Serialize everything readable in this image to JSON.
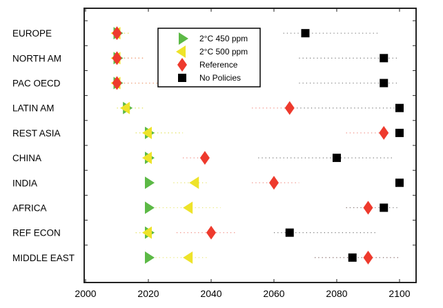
{
  "chart_data": {
    "type": "scatter",
    "title": "",
    "xlabel": "",
    "ylabel": "",
    "xlim": [
      2000,
      2105
    ],
    "xticks": [
      2000,
      2020,
      2040,
      2060,
      2080,
      2100
    ],
    "grid": false,
    "legend_position": "top-center",
    "categories": [
      "EUROPE",
      "NORTH AM",
      "PAC OECD",
      "LATIN AM",
      "REST ASIA",
      "CHINA",
      "INDIA",
      "AFRICA",
      "REF ECON",
      "MIDDLE EAST"
    ],
    "series": [
      {
        "name": "2°C 450 ppm",
        "marker": "triangle-right",
        "color": "#5cb946",
        "values": [
          2010,
          2010,
          2010,
          2013,
          2020,
          2020,
          2020,
          2020,
          2020,
          2020
        ],
        "ranges": [
          [
            2010,
            2014
          ],
          [
            2010,
            2019
          ],
          [
            2010,
            2023
          ],
          [
            2010,
            2019
          ],
          [
            2016,
            2031
          ],
          [
            2020,
            2020
          ],
          [
            2020,
            2020
          ],
          [
            2020,
            2020
          ],
          [
            2016,
            2020
          ],
          [
            2020,
            2020
          ]
        ]
      },
      {
        "name": "2°C 500 ppm",
        "marker": "triangle-left",
        "color": "#eee32a",
        "values": [
          2010,
          2010,
          2010,
          2013,
          2020,
          2020,
          2035,
          2033,
          2020,
          2033
        ],
        "ranges": [
          [
            2010,
            2014
          ],
          [
            2010,
            2019
          ],
          [
            2010,
            2023
          ],
          [
            2010,
            2019
          ],
          [
            2016,
            2031
          ],
          [
            2020,
            2020
          ],
          [
            2028,
            2039
          ],
          [
            2020,
            2043
          ],
          [
            2016,
            2020
          ],
          [
            2020,
            2039
          ]
        ]
      },
      {
        "name": "Reference",
        "marker": "diamond",
        "color": "#ee3a2d",
        "values": [
          2010,
          2010,
          2010,
          2065,
          2095,
          2038,
          2060,
          2090,
          2040,
          2090
        ],
        "ranges": [
          [
            2010,
            2010
          ],
          [
            2010,
            2019
          ],
          [
            2010,
            2023
          ],
          [
            2053,
            2065
          ],
          [
            2083,
            2095
          ],
          [
            2031,
            2040
          ],
          [
            2053,
            2068
          ],
          [
            2083,
            2090
          ],
          [
            2029,
            2048
          ],
          [
            2073,
            2100
          ]
        ]
      },
      {
        "name": "No Policies",
        "marker": "square",
        "color": "#000000",
        "values": [
          2070,
          2095,
          2095,
          2100,
          2100,
          2080,
          2100,
          2095,
          2065,
          2085
        ],
        "ranges": [
          [
            2063,
            2093
          ],
          [
            2068,
            2100
          ],
          [
            2068,
            2100
          ],
          [
            2065,
            2100
          ],
          [
            2100,
            2100
          ],
          [
            2055,
            2098
          ],
          [
            2100,
            2100
          ],
          [
            2083,
            2100
          ],
          [
            2060,
            2093
          ],
          [
            2073,
            2100
          ]
        ]
      }
    ]
  }
}
